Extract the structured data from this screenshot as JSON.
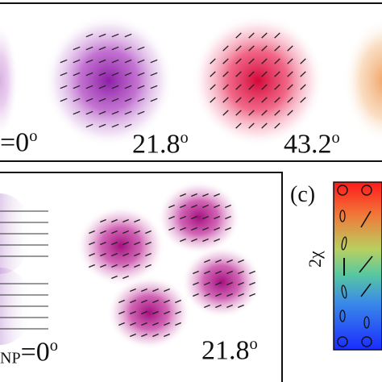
{
  "panel_top": {
    "angles": [
      "=0",
      "21.8",
      "43.2"
    ],
    "degree_symbol": "o"
  },
  "panel_bottom": {
    "prefix_sub": "NP",
    "angles": [
      "=0",
      "21.8"
    ],
    "degree_symbol": "o"
  },
  "panel_c": {
    "label": "(c)",
    "axis": "2χ"
  },
  "colors": {
    "violet": "#9a2cb0",
    "magenta": "#b0208a",
    "red": "#e0204a",
    "orange": "#f0a060",
    "frame": "#111111"
  }
}
